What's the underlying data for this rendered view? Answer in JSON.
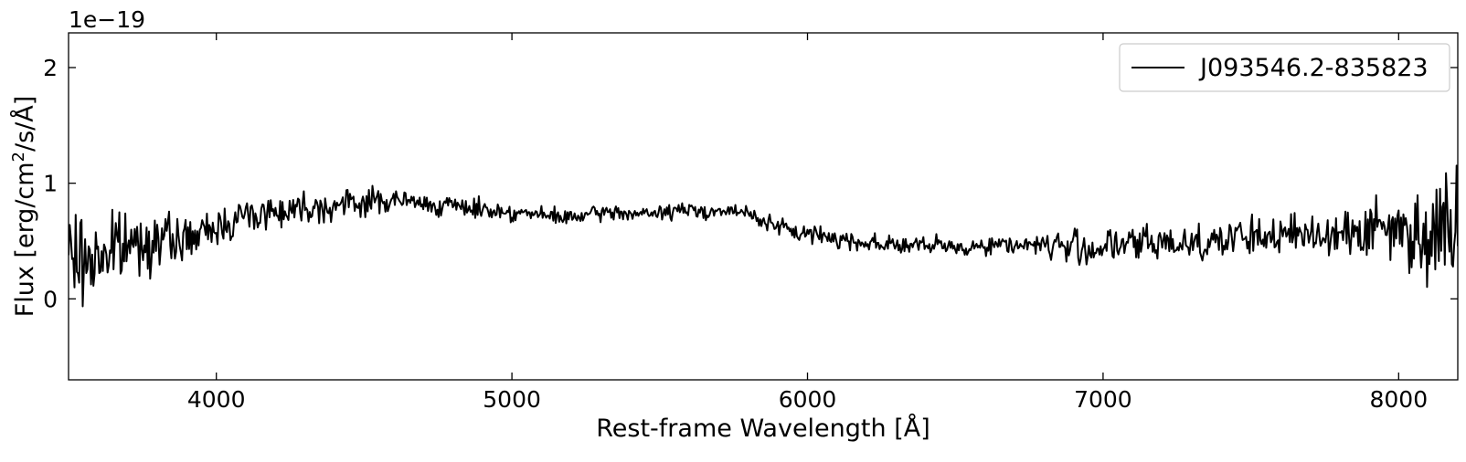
{
  "chart_data": {
    "type": "line",
    "title": "",
    "xlabel": "Rest-frame Wavelength [Å]",
    "ylabel": "Flux [erg/cm",
    "ylabel_sup": "2",
    "ylabel_tail": "/s/Å]",
    "y_offset_text": "1e−19",
    "xlim": [
      3500,
      8200
    ],
    "ylim": [
      -0.7,
      2.3
    ],
    "x_ticks": [
      4000,
      5000,
      6000,
      7000,
      8000
    ],
    "x_tick_labels": [
      "4000",
      "5000",
      "6000",
      "7000",
      "8000"
    ],
    "y_ticks": [
      0,
      1,
      2
    ],
    "y_tick_labels": [
      "0",
      "1",
      "2"
    ],
    "grid": false,
    "legend_position": "top-right",
    "series": [
      {
        "name": "J093546.2-835823",
        "color": "#000000",
        "x": [
          3500,
          3550,
          3600,
          3650,
          3700,
          3750,
          3800,
          3850,
          3900,
          3950,
          4000,
          4050,
          4100,
          4150,
          4200,
          4250,
          4300,
          4350,
          4400,
          4450,
          4500,
          4550,
          4600,
          4650,
          4700,
          4750,
          4800,
          4850,
          4900,
          4950,
          5000,
          5050,
          5100,
          5150,
          5200,
          5250,
          5300,
          5350,
          5400,
          5450,
          5500,
          5550,
          5600,
          5650,
          5700,
          5750,
          5800,
          5850,
          5900,
          5950,
          6000,
          6050,
          6100,
          6150,
          6200,
          6250,
          6300,
          6350,
          6400,
          6450,
          6500,
          6550,
          6600,
          6650,
          6700,
          6750,
          6800,
          6850,
          6900,
          6950,
          7000,
          7050,
          7100,
          7150,
          7200,
          7250,
          7300,
          7350,
          7400,
          7450,
          7500,
          7550,
          7600,
          7650,
          7700,
          7750,
          7800,
          7850,
          7900,
          7950,
          8000,
          8050,
          8100,
          8150,
          8200
        ],
        "y": [
          0.4,
          0.32,
          0.38,
          0.42,
          0.46,
          0.5,
          0.52,
          0.5,
          0.52,
          0.55,
          0.62,
          0.68,
          0.72,
          0.74,
          0.76,
          0.78,
          0.8,
          0.8,
          0.8,
          0.82,
          0.84,
          0.85,
          0.85,
          0.84,
          0.82,
          0.81,
          0.8,
          0.79,
          0.78,
          0.76,
          0.75,
          0.74,
          0.72,
          0.71,
          0.7,
          0.72,
          0.74,
          0.75,
          0.74,
          0.73,
          0.74,
          0.76,
          0.77,
          0.76,
          0.76,
          0.75,
          0.74,
          0.68,
          0.62,
          0.58,
          0.56,
          0.55,
          0.52,
          0.5,
          0.49,
          0.48,
          0.47,
          0.46,
          0.46,
          0.45,
          0.45,
          0.45,
          0.46,
          0.47,
          0.47,
          0.47,
          0.47,
          0.46,
          0.44,
          0.44,
          0.45,
          0.46,
          0.47,
          0.48,
          0.48,
          0.49,
          0.49,
          0.5,
          0.51,
          0.52,
          0.53,
          0.54,
          0.55,
          0.55,
          0.56,
          0.57,
          0.58,
          0.59,
          0.6,
          0.61,
          0.6,
          0.58,
          0.56,
          0.6,
          0.7
        ],
        "noise": [
          0.22,
          0.25,
          0.22,
          0.2,
          0.18,
          0.16,
          0.14,
          0.12,
          0.11,
          0.1,
          0.1,
          0.1,
          0.1,
          0.09,
          0.09,
          0.09,
          0.08,
          0.08,
          0.08,
          0.08,
          0.08,
          0.07,
          0.07,
          0.06,
          0.06,
          0.05,
          0.05,
          0.05,
          0.05,
          0.05,
          0.05,
          0.04,
          0.04,
          0.04,
          0.04,
          0.04,
          0.04,
          0.04,
          0.04,
          0.04,
          0.04,
          0.04,
          0.04,
          0.04,
          0.04,
          0.04,
          0.04,
          0.04,
          0.05,
          0.05,
          0.05,
          0.05,
          0.05,
          0.05,
          0.05,
          0.05,
          0.05,
          0.05,
          0.05,
          0.05,
          0.05,
          0.05,
          0.05,
          0.05,
          0.05,
          0.05,
          0.06,
          0.08,
          0.1,
          0.1,
          0.1,
          0.1,
          0.1,
          0.1,
          0.1,
          0.1,
          0.1,
          0.1,
          0.1,
          0.1,
          0.1,
          0.1,
          0.1,
          0.11,
          0.11,
          0.12,
          0.13,
          0.14,
          0.15,
          0.17,
          0.2,
          0.22,
          0.26,
          0.3,
          0.34
        ]
      }
    ]
  }
}
